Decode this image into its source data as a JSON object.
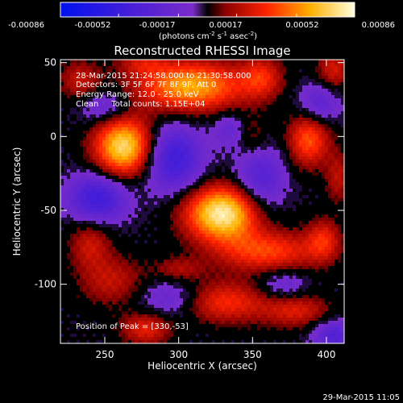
{
  "colorbar": {
    "ticks": [
      "-0.00086",
      "-0.00052",
      "-0.00017",
      "0.00017",
      "0.00052",
      "0.00086"
    ],
    "tick_values": [
      -0.00086,
      -0.00052,
      -0.00017,
      0.00017,
      0.00052,
      0.00086
    ],
    "units_label": "(photons cm",
    "units_sup1": "-2",
    "units_mid": " s",
    "units_sup2": "-1",
    "units_end": " asec",
    "units_sup3": "-2",
    "units_close": ")"
  },
  "title": "Reconstructed RHESSI Image",
  "info": {
    "time": "28-Mar-2015 21:24:58.000 to 21:30:58.000",
    "detectors": "Detectors: 3F 5F 6F 7F 8F 9F, Att 0",
    "energy": "Energy Range: 12.0 - 25.0 keV",
    "clean": "Clean     Total counts: 1.15E+04",
    "peak": "Position of Peak = [330,-53]"
  },
  "footer_date": "29-Mar-2015 11:05",
  "chart_data": {
    "type": "heatmap",
    "title": "Reconstructed RHESSI Image",
    "xlabel": "Heliocentric X (arcsec)",
    "ylabel": "Heliocentric Y (arcsec)",
    "xlim": [
      220,
      412
    ],
    "ylim": [
      -140,
      52
    ],
    "xticks": [
      250,
      300,
      350,
      400
    ],
    "yticks": [
      50,
      0,
      -50,
      -100
    ],
    "clim": [
      -0.00086,
      0.00086
    ],
    "peak": [
      330,
      -53
    ],
    "sources": [
      {
        "x": 330,
        "y": -52,
        "amp": 1.0,
        "sx": 18,
        "sy": 13
      },
      {
        "x": 263,
        "y": -7,
        "amp": 0.92,
        "sx": 14,
        "sy": 14
      },
      {
        "x": 308,
        "y": 34,
        "amp": 0.75,
        "sx": 26,
        "sy": 12
      },
      {
        "x": 388,
        "y": -2,
        "amp": 0.55,
        "sx": 10,
        "sy": 13
      },
      {
        "x": 360,
        "y": -78,
        "amp": 0.5,
        "sx": 24,
        "sy": 10
      },
      {
        "x": 330,
        "y": -112,
        "amp": 0.45,
        "sx": 22,
        "sy": 10
      },
      {
        "x": 255,
        "y": -98,
        "amp": 0.3,
        "sx": 16,
        "sy": 12
      },
      {
        "x": 240,
        "y": -72,
        "amp": 0.32,
        "sx": 10,
        "sy": 12
      },
      {
        "x": 380,
        "y": -118,
        "amp": 0.35,
        "sx": 16,
        "sy": 8
      },
      {
        "x": 356,
        "y": 40,
        "amp": 0.38,
        "sx": 10,
        "sy": 10
      },
      {
        "x": 405,
        "y": 45,
        "amp": 0.35,
        "sx": 8,
        "sy": 10
      },
      {
        "x": 278,
        "y": -130,
        "amp": 0.4,
        "sx": 12,
        "sy": 8
      },
      {
        "x": 398,
        "y": -70,
        "amp": 0.38,
        "sx": 8,
        "sy": 10
      },
      {
        "x": 233,
        "y": 38,
        "amp": 0.3,
        "sx": 10,
        "sy": 10
      },
      {
        "x": 300,
        "y": -90,
        "amp": 0.25,
        "sx": 12,
        "sy": 6
      },
      {
        "x": 350,
        "y": 0,
        "amp": 0.22,
        "sx": 8,
        "sy": 10
      },
      {
        "x": 408,
        "y": -28,
        "amp": 0.28,
        "sx": 6,
        "sy": 12
      },
      {
        "x": 275,
        "y": 50,
        "amp": 0.25,
        "sx": 12,
        "sy": 6
      },
      {
        "x": 296,
        "y": -15,
        "amp": -0.55,
        "sx": 14,
        "sy": 16
      },
      {
        "x": 245,
        "y": -42,
        "amp": -0.55,
        "sx": 14,
        "sy": 12
      },
      {
        "x": 355,
        "y": -30,
        "amp": -0.4,
        "sx": 12,
        "sy": 18
      },
      {
        "x": 395,
        "y": 22,
        "amp": -0.35,
        "sx": 10,
        "sy": 10
      },
      {
        "x": 250,
        "y": 20,
        "amp": -0.3,
        "sx": 12,
        "sy": 8
      },
      {
        "x": 295,
        "y": -110,
        "amp": -0.3,
        "sx": 16,
        "sy": 10
      },
      {
        "x": 405,
        "y": -135,
        "amp": -0.4,
        "sx": 10,
        "sy": 8
      },
      {
        "x": 335,
        "y": 5,
        "amp": -0.25,
        "sx": 8,
        "sy": 8
      },
      {
        "x": 370,
        "y": -100,
        "amp": -0.25,
        "sx": 12,
        "sy": 8
      }
    ]
  }
}
